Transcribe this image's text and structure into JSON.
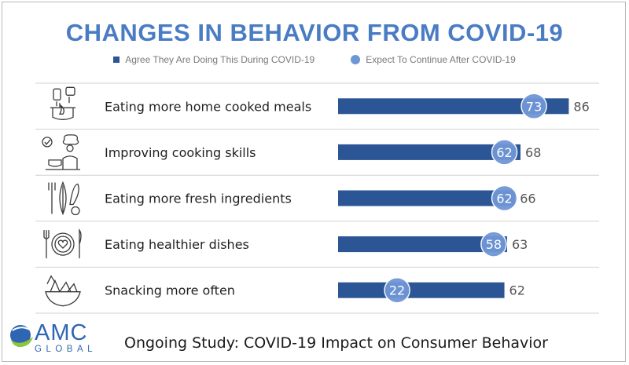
{
  "title": "CHANGES IN BEHAVIOR FROM COVID-19",
  "legend": {
    "bar_label": "Agree They Are Doing This During COVID-19",
    "dot_label": "Expect To Continue After COVID-19"
  },
  "colors": {
    "title": "#4a7cc4",
    "bar": "#2c5596",
    "dot": "#6f96d6",
    "label_text": "#1f1f1f",
    "value_text": "#555555",
    "separator": "#d0d0d0",
    "logo_blue": "#2f66b3",
    "logo_green": "#8cc63f"
  },
  "chart_data": {
    "type": "bar",
    "orientation": "horizontal",
    "title": "CHANGES IN BEHAVIOR FROM COVID-19",
    "categories": [
      "Eating more home cooked meals",
      "Improving cooking skills",
      "Eating more fresh ingredients",
      "Eating healthier dishes",
      "Snacking more often"
    ],
    "icons": [
      "cooking-pot-icon",
      "chef-icon",
      "vegetables-icon",
      "plate-heart-icon",
      "snack-bowl-icon"
    ],
    "series": [
      {
        "name": "Agree They Are Doing This During COVID-19",
        "marker": "bar",
        "values": [
          86,
          68,
          66,
          63,
          62
        ]
      },
      {
        "name": "Expect To Continue After COVID-19",
        "marker": "dot",
        "values": [
          73,
          62,
          62,
          58,
          22
        ]
      }
    ],
    "xlim": [
      0,
      100
    ],
    "grid": false,
    "legend_position": "top"
  },
  "footer": {
    "logo_top": "AMC",
    "logo_bottom": "GLOBAL",
    "subtitle": "Ongoing Study: COVID-19 Impact on Consumer Behavior"
  }
}
